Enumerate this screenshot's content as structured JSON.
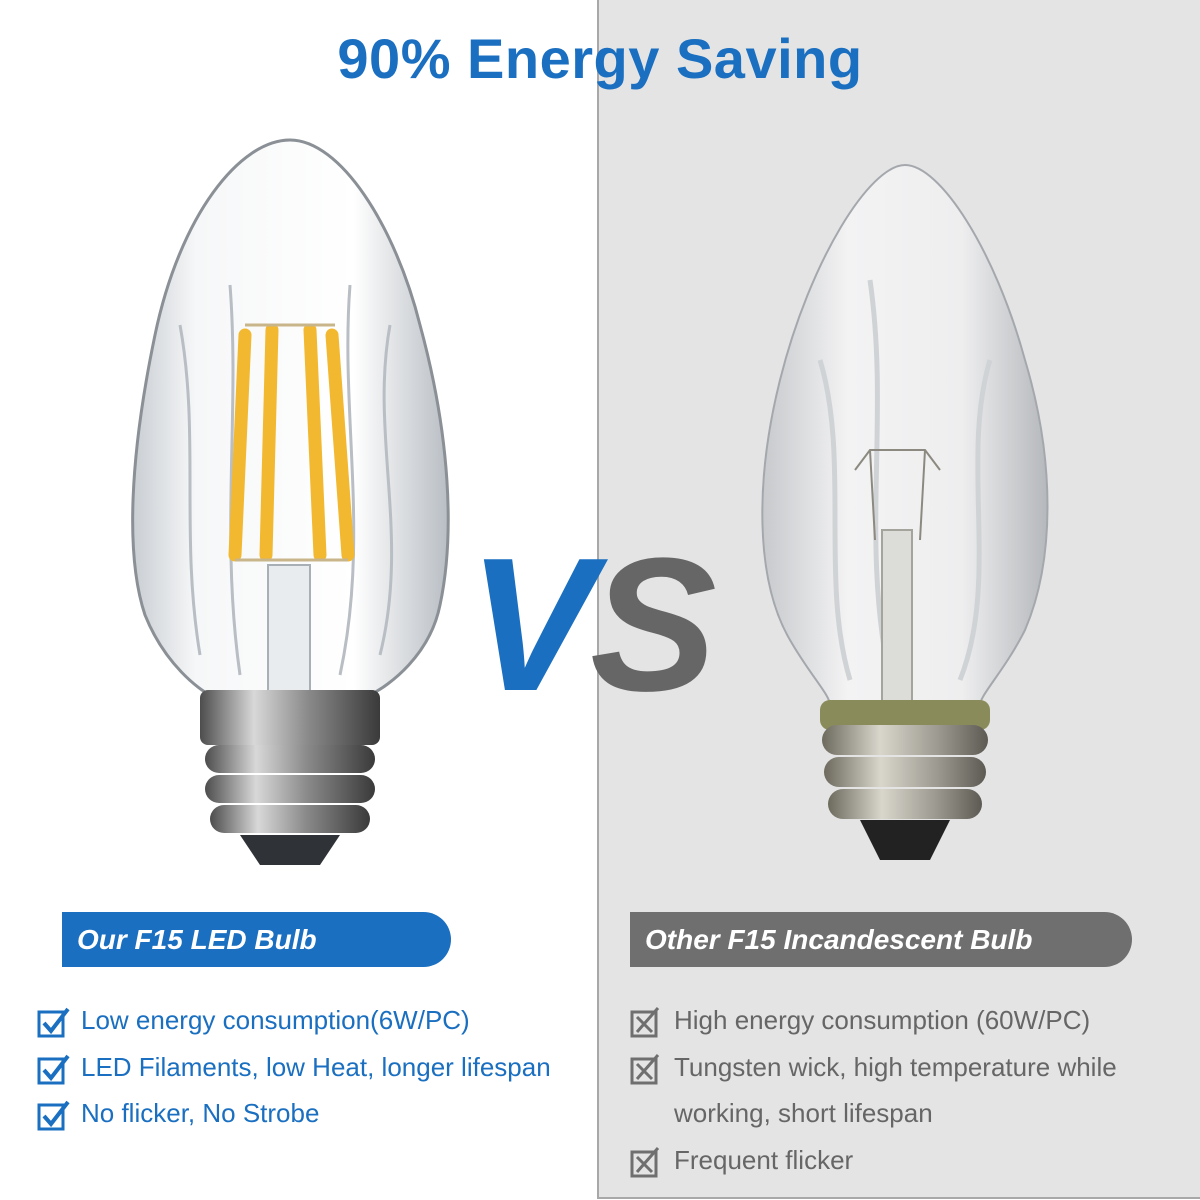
{
  "title": "90% Energy Saving",
  "vs": {
    "v": "V",
    "s": "S"
  },
  "colors": {
    "brand_blue": "#1a6fc0",
    "grey": "#6f6f6f",
    "panel_bg": "#e4e4e4"
  },
  "led": {
    "header": "Our F15 LED Bulb",
    "icon": "checkbox-checked-icon",
    "features": [
      "Low energy consumption(6W/PC)",
      "LED Filaments, low Heat, longer lifespan",
      "No flicker, No Strobe"
    ]
  },
  "incandescent": {
    "header": "Other F15 Incandescent Bulb",
    "icon": "checkbox-crossed-icon",
    "features": [
      "High energy consumption (60W/PC)",
      "Tungsten wick, high temperature while",
      "working, short lifespan",
      "Frequent flicker"
    ]
  }
}
